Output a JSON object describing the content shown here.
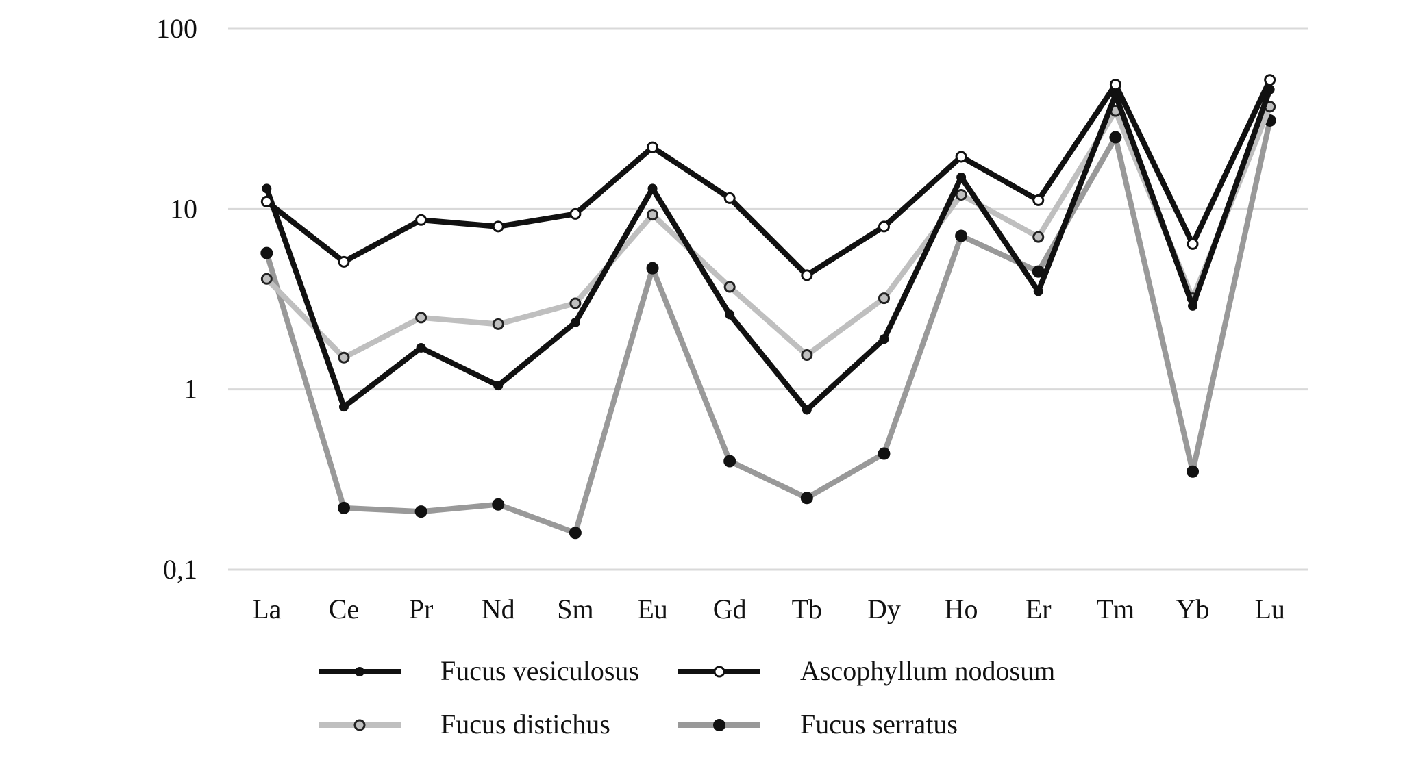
{
  "chart_data": {
    "type": "line",
    "title": "",
    "xlabel": "",
    "ylabel": "",
    "yscale": "log",
    "ylim": [
      0.1,
      100
    ],
    "y_ticks": [
      {
        "value": 100,
        "label": "100"
      },
      {
        "value": 10,
        "label": "10"
      },
      {
        "value": 1,
        "label": "1"
      },
      {
        "value": 0.1,
        "label": "0,1"
      }
    ],
    "grid": true,
    "legend_position": "bottom",
    "categories": [
      "La",
      "Ce",
      "Pr",
      "Nd",
      "Sm",
      "Eu",
      "Gd",
      "Tb",
      "Dy",
      "Ho",
      "Er",
      "Tm",
      "Yb",
      "Lu"
    ],
    "series": [
      {
        "name": "Fucus serratus",
        "color": "#999999",
        "marker": "filled-black",
        "values": [
          5.7,
          0.22,
          0.21,
          0.23,
          0.16,
          4.7,
          0.4,
          0.25,
          0.44,
          7.1,
          4.5,
          25,
          0.35,
          31
        ]
      },
      {
        "name": "Fucus distichus",
        "color": "#bfbfbf",
        "marker": "grey-ring",
        "values": [
          4.1,
          1.5,
          2.5,
          2.3,
          3.0,
          9.3,
          3.7,
          1.55,
          3.2,
          12,
          7.0,
          35,
          3.2,
          37
        ]
      },
      {
        "name": "Fucus vesiculosus",
        "color": "#111111",
        "marker": "small-dot",
        "values": [
          13,
          0.8,
          1.7,
          1.05,
          2.35,
          13,
          2.6,
          0.77,
          1.9,
          15,
          3.5,
          43,
          2.9,
          46
        ]
      },
      {
        "name": "Ascophyllum nodosum",
        "color": "#111111",
        "marker": "hollow-white",
        "values": [
          11,
          5.1,
          8.7,
          8.0,
          9.4,
          22,
          11.5,
          4.3,
          8.0,
          19.5,
          11.2,
          49,
          6.4,
          52
        ]
      }
    ],
    "legend": [
      {
        "label": "Fucus vesiculosus",
        "series_index": 2
      },
      {
        "label": "Ascophyllum nodosum",
        "series_index": 3
      },
      {
        "label": "Fucus distichus",
        "series_index": 1
      },
      {
        "label": "Fucus serratus",
        "series_index": 0
      }
    ]
  }
}
